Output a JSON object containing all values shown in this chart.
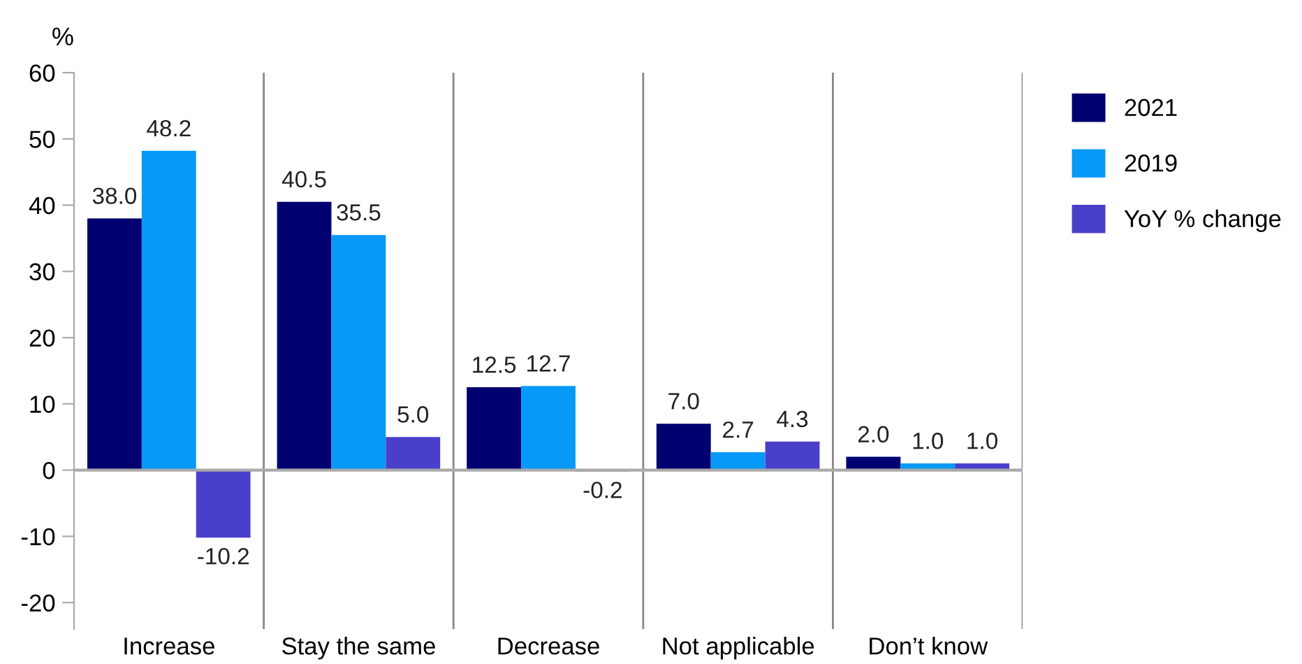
{
  "chart_data": {
    "type": "bar",
    "ylabel": "%",
    "categories": [
      "Increase",
      "Stay the same",
      "Decrease",
      "Not applicable",
      "Don’t know"
    ],
    "series": [
      {
        "name": "2021",
        "color": "#000070",
        "values": [
          38.0,
          40.5,
          12.5,
          7.0,
          2.0
        ],
        "value_labels": [
          "38.0",
          "40.5",
          "12.5",
          "7.0",
          "2.0"
        ]
      },
      {
        "name": "2019",
        "color": "#0799f7",
        "values": [
          48.2,
          35.5,
          12.7,
          2.7,
          1.0
        ],
        "value_labels": [
          "48.2",
          "35.5",
          "12.7",
          "2.7",
          "1.0"
        ]
      },
      {
        "name": "YoY % change",
        "color": "#4a3fcb",
        "values": [
          -10.2,
          5.0,
          -0.2,
          4.3,
          1.0
        ],
        "value_labels": [
          "-10.2",
          "5.0",
          "-0.2",
          "4.3",
          "1.0"
        ]
      }
    ],
    "ylim": [
      -24,
      60
    ],
    "yticks": [
      -20,
      -10,
      0,
      10,
      20,
      30,
      40,
      50,
      60
    ],
    "grid": false,
    "legend": "right"
  }
}
